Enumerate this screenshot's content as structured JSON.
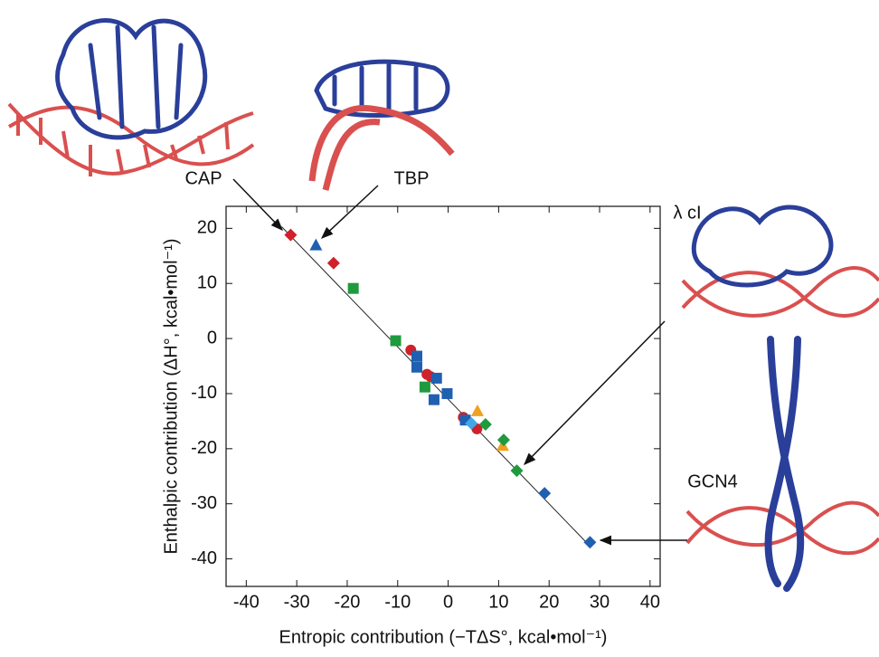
{
  "chart_data": {
    "type": "scatter",
    "xlabel": "Entropic contribution (−TΔS°, kcal•mol⁻¹)",
    "ylabel": "Enthalpic contribution (ΔH°, kcal•mol⁻¹)",
    "xlim": [
      -44,
      42
    ],
    "ylim": [
      -45,
      24
    ],
    "xticks": [
      -40,
      -30,
      -20,
      -10,
      0,
      10,
      20,
      30,
      40
    ],
    "yticks": [
      -40,
      -30,
      -20,
      -10,
      0,
      10,
      20
    ],
    "annotations": [
      "CAP",
      "TBP",
      "λ cI",
      "GCN4"
    ],
    "trend_line": {
      "x": [
        -33,
        28
      ],
      "y": [
        20.3,
        -37.6
      ]
    },
    "series": [
      {
        "color": "#d0202a",
        "marker": "diamond",
        "x": [
          -31.2,
          -22.7
        ],
        "y": [
          18.8,
          13.7
        ]
      },
      {
        "color": "#2060b0",
        "marker": "triangle",
        "x": [
          -26.2
        ],
        "y": [
          17
        ]
      },
      {
        "color": "#1f9a3e",
        "marker": "square",
        "x": [
          -18.8,
          -10.4,
          -4.6
        ],
        "y": [
          9.1,
          -0.4,
          -8.8
        ]
      },
      {
        "color": "#d0202a",
        "marker": "circle",
        "x": [
          -7.4,
          -4.2,
          -3.5,
          3,
          5.7
        ],
        "y": [
          -2.1,
          -6.5,
          -6.9,
          -14.3,
          -16.4
        ]
      },
      {
        "color": "#2060b0",
        "marker": "square",
        "x": [
          -6.2,
          -6.2,
          -2.3,
          -0.2,
          -2.8,
          3.4
        ],
        "y": [
          -3.2,
          -5.2,
          -7.2,
          -10,
          -11.1,
          -14.8
        ]
      },
      {
        "color": "#f0a020",
        "marker": "triangle",
        "x": [
          5.8,
          10.8
        ],
        "y": [
          -13.1,
          -19.4
        ]
      },
      {
        "color": "#40a8e8",
        "marker": "diamond",
        "x": [
          4.6
        ],
        "y": [
          -15.4
        ]
      },
      {
        "color": "#1f9a3e",
        "marker": "diamond",
        "x": [
          7.4,
          11,
          13.6
        ],
        "y": [
          -15.6,
          -18.4,
          -24
        ]
      },
      {
        "color": "#2060b0",
        "marker": "diamond",
        "x": [
          19.1,
          28.1
        ],
        "y": [
          -28.1,
          -37
        ]
      }
    ]
  }
}
